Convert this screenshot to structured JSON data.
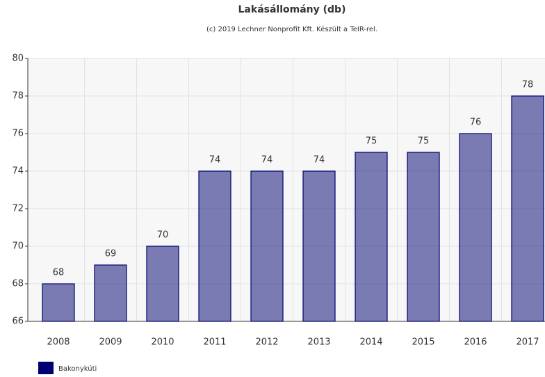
{
  "chart_data": {
    "type": "bar",
    "title": "Lakásállomány (db)",
    "subtitle": "(c) 2019 Lechner Nonprofit Kft. Készült a TeIR-rel.",
    "categories": [
      "2008",
      "2009",
      "2010",
      "2011",
      "2012",
      "2013",
      "2014",
      "2015",
      "2016",
      "2017"
    ],
    "series": [
      {
        "name": "Bakonykúti",
        "color": "#000070",
        "values": [
          68,
          69,
          70,
          74,
          74,
          74,
          75,
          75,
          76,
          78
        ]
      }
    ],
    "ylim": [
      66,
      80
    ],
    "yticks": [
      66,
      68,
      70,
      72,
      74,
      76,
      78,
      80
    ],
    "grid": true,
    "legend": "bottom"
  }
}
